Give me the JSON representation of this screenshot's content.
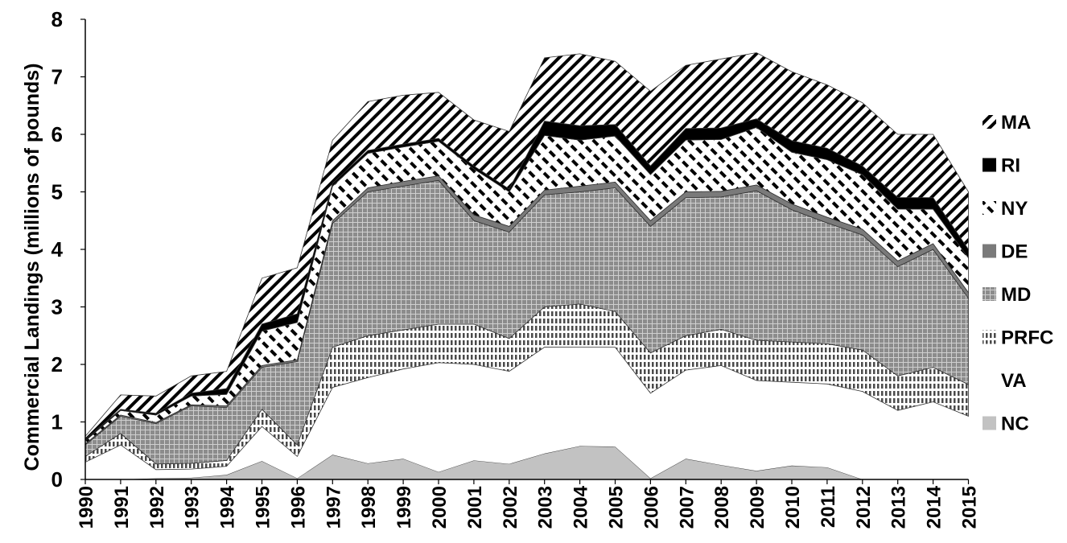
{
  "chart_data": {
    "type": "area",
    "stacked": true,
    "ylabel": "Commercial Landings (millions of pounds)",
    "xlabel": "",
    "ylim": [
      0,
      8
    ],
    "yticks": [
      "0",
      "1",
      "2",
      "3",
      "4",
      "5",
      "6",
      "7",
      "8"
    ],
    "x": [
      "1990",
      "1991",
      "1992",
      "1993",
      "1994",
      "1995",
      "1996",
      "1997",
      "1998",
      "1999",
      "2000",
      "2001",
      "2002",
      "2003",
      "2004",
      "2005",
      "2006",
      "2007",
      "2008",
      "2009",
      "2010",
      "2011",
      "2012",
      "2013",
      "2014",
      "2015"
    ],
    "legend_position": "right",
    "series": [
      {
        "name": "NC",
        "pattern": "solid-light",
        "values": [
          0,
          0,
          0.02,
          0.03,
          0.08,
          0.32,
          0.02,
          0.43,
          0.28,
          0.36,
          0.13,
          0.33,
          0.27,
          0.45,
          0.58,
          0.57,
          0.02,
          0.36,
          0.25,
          0.15,
          0.24,
          0.21,
          0,
          0,
          0,
          0
        ]
      },
      {
        "name": "VA",
        "pattern": "white",
        "values": [
          0.3,
          0.6,
          0.15,
          0.15,
          0.15,
          0.6,
          0.38,
          1.17,
          1.49,
          1.56,
          1.9,
          1.67,
          1.61,
          1.85,
          1.72,
          1.73,
          1.48,
          1.54,
          1.73,
          1.57,
          1.45,
          1.45,
          1.53,
          1.2,
          1.35,
          1.1
        ]
      },
      {
        "name": "PRFC",
        "pattern": "vertical-dashes",
        "values": [
          0.1,
          0.2,
          0.1,
          0.1,
          0.1,
          0.3,
          0.2,
          0.7,
          0.73,
          0.68,
          0.67,
          0.7,
          0.57,
          0.7,
          0.75,
          0.62,
          0.7,
          0.6,
          0.63,
          0.7,
          0.7,
          0.7,
          0.72,
          0.6,
          0.6,
          0.55
        ]
      },
      {
        "name": "MD",
        "pattern": "grid",
        "values": [
          0.2,
          0.3,
          0.7,
          1.0,
          0.92,
          0.73,
          1.45,
          2.15,
          2.5,
          2.5,
          2.5,
          1.8,
          1.85,
          1.95,
          1.95,
          2.15,
          2.2,
          2.4,
          2.3,
          2.6,
          2.3,
          2.1,
          2.0,
          1.9,
          2.05,
          1.5
        ]
      },
      {
        "name": "DE",
        "pattern": "solid-dark",
        "values": [
          0.02,
          0.02,
          0.02,
          0.02,
          0.03,
          0.03,
          0.03,
          0.05,
          0.07,
          0.08,
          0.08,
          0.1,
          0.1,
          0.08,
          0.1,
          0.1,
          0.1,
          0.1,
          0.1,
          0.1,
          0.1,
          0.1,
          0.1,
          0.1,
          0.1,
          0.1
        ]
      },
      {
        "name": "NY",
        "pattern": "diagonal-dashes",
        "values": [
          0.05,
          0.08,
          0.13,
          0.15,
          0.2,
          0.6,
          0.65,
          0.6,
          0.6,
          0.6,
          0.6,
          0.8,
          0.6,
          0.95,
          0.8,
          0.8,
          0.8,
          0.9,
          0.9,
          1.0,
          0.9,
          1.0,
          0.95,
          0.9,
          0.6,
          0.6
        ]
      },
      {
        "name": "RI",
        "pattern": "solid-black",
        "values": [
          0.03,
          0.02,
          0.03,
          0.05,
          0.1,
          0.12,
          0.15,
          0.05,
          0.05,
          0.05,
          0.05,
          0.05,
          0.05,
          0.25,
          0.25,
          0.2,
          0.15,
          0.2,
          0.2,
          0.15,
          0.2,
          0.2,
          0.15,
          0.2,
          0.2,
          0.15
        ]
      },
      {
        "name": "MA",
        "pattern": "diagonal-stripes",
        "values": [
          0.05,
          0.25,
          0.3,
          0.3,
          0.3,
          0.8,
          0.8,
          0.75,
          0.85,
          0.85,
          0.8,
          0.8,
          1.0,
          1.1,
          1.25,
          1.1,
          1.3,
          1.1,
          1.2,
          1.15,
          1.2,
          1.1,
          1.1,
          1.1,
          1.1,
          1.0
        ]
      }
    ],
    "legend_order": [
      "MA",
      "RI",
      "NY",
      "DE",
      "MD",
      "PRFC",
      "VA",
      "NC"
    ]
  }
}
